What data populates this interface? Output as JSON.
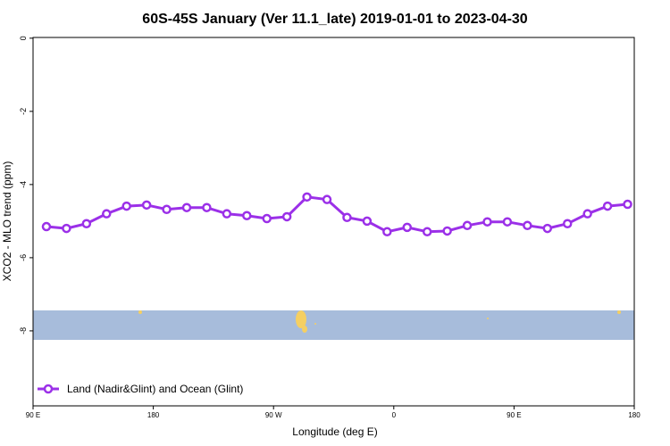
{
  "chart_data": {
    "type": "line",
    "title": "60S-45S January (Ver 11.1_late)   2019-01-01 to 2023-04-30",
    "x_label": "Longitude (deg E)",
    "y_label": "XCO2 - MLO trend (ppm)",
    "x": [
      100,
      115,
      130,
      145,
      160,
      175,
      190,
      205,
      220,
      235,
      250,
      265,
      280,
      295,
      310,
      325,
      340,
      355,
      370,
      385,
      400,
      415,
      430,
      445,
      460,
      475,
      490,
      505,
      520,
      535
    ],
    "series": [
      {
        "name": "Land (Nadir&Glint) and Ocean (Glint)",
        "color": "#9b30e8",
        "values": [
          -5.15,
          -5.2,
          -5.07,
          -4.8,
          -4.59,
          -4.56,
          -4.68,
          -4.63,
          -4.63,
          -4.8,
          -4.85,
          -4.93,
          -4.88,
          -4.34,
          -4.41,
          -4.9,
          -5.0,
          -5.29,
          -5.17,
          -5.29,
          -5.27,
          -5.12,
          -5.02,
          -5.02,
          -5.12,
          -5.2,
          -5.07,
          -4.8,
          -4.59,
          -4.54
        ]
      }
    ],
    "xlim": [
      90,
      540
    ],
    "xticks": [
      {
        "value": 90,
        "label": "90 E"
      },
      {
        "value": 180,
        "label": "180"
      },
      {
        "value": 270,
        "label": "90 W"
      },
      {
        "value": 360,
        "label": "0"
      },
      {
        "value": 450,
        "label": "90 E"
      },
      {
        "value": 540,
        "label": "180"
      }
    ],
    "ylim": [
      -10.05,
      0.02
    ],
    "yticks": [
      0,
      -2,
      -4,
      -6,
      -8
    ],
    "legend": "bottom-left"
  }
}
